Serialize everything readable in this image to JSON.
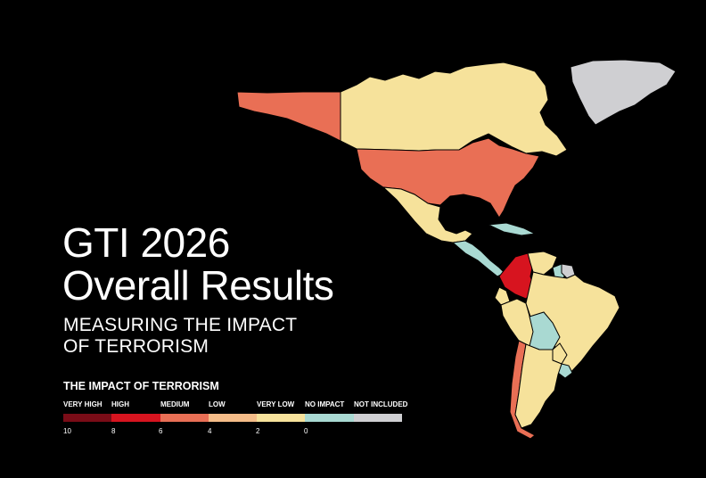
{
  "title": {
    "line1": "GTI 2026",
    "line2": "Overall Results"
  },
  "subtitle": {
    "line1": "MEASURING THE IMPACT",
    "line2": "OF TERRORISM"
  },
  "legend": {
    "title": "THE IMPACT OF TERRORISM",
    "categories": [
      {
        "label": "VERY HIGH",
        "color": "#7a0c17"
      },
      {
        "label": "HIGH",
        "color": "#d7141f"
      },
      {
        "label": "MEDIUM",
        "color": "#e96f55"
      },
      {
        "label": "LOW",
        "color": "#f4bc88"
      },
      {
        "label": "VERY LOW",
        "color": "#f6e29b"
      },
      {
        "label": "NO IMPACT",
        "color": "#a9d9d2"
      },
      {
        "label": "NOT INCLUDED",
        "color": "#cfcfd2"
      }
    ],
    "ticks": [
      "10",
      "8",
      "6",
      "4",
      "2",
      "0"
    ]
  },
  "regions": [
    {
      "name": "alaska",
      "impact": "MEDIUM"
    },
    {
      "name": "canada",
      "impact": "VERY LOW"
    },
    {
      "name": "greenland",
      "impact": "NOT INCLUDED"
    },
    {
      "name": "united-states",
      "impact": "MEDIUM"
    },
    {
      "name": "mexico",
      "impact": "VERY LOW"
    },
    {
      "name": "cuba",
      "impact": "NO IMPACT"
    },
    {
      "name": "central-america",
      "impact": "NO IMPACT"
    },
    {
      "name": "colombia",
      "impact": "HIGH"
    },
    {
      "name": "venezuela",
      "impact": "VERY LOW"
    },
    {
      "name": "guyana",
      "impact": "NO IMPACT"
    },
    {
      "name": "suriname",
      "impact": "NOT INCLUDED"
    },
    {
      "name": "ecuador",
      "impact": "VERY LOW"
    },
    {
      "name": "peru",
      "impact": "VERY LOW"
    },
    {
      "name": "brazil",
      "impact": "VERY LOW"
    },
    {
      "name": "bolivia",
      "impact": "NO IMPACT"
    },
    {
      "name": "paraguay",
      "impact": "VERY LOW"
    },
    {
      "name": "uruguay",
      "impact": "NO IMPACT"
    },
    {
      "name": "chile",
      "impact": "MEDIUM"
    },
    {
      "name": "argentina",
      "impact": "VERY LOW"
    }
  ]
}
